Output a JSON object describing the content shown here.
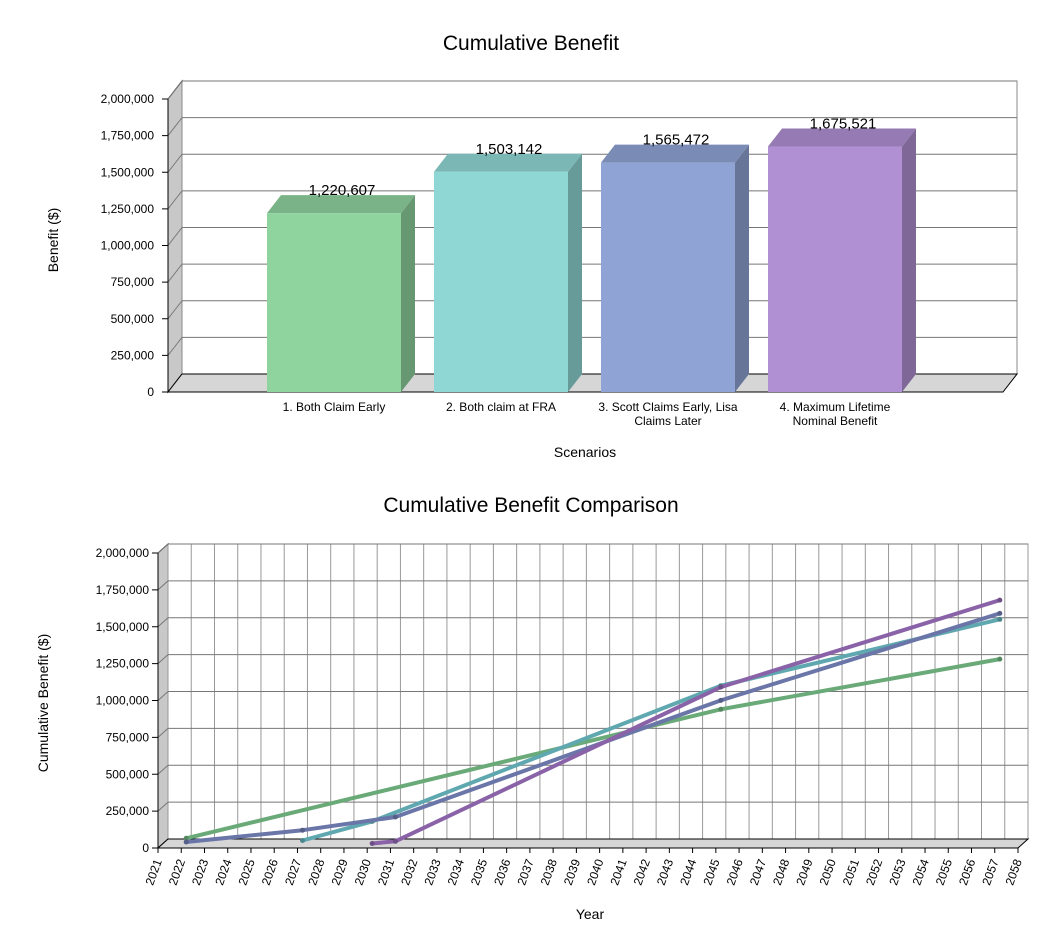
{
  "chart_data": [
    {
      "type": "bar",
      "title": "Cumulative Benefit",
      "xlabel": "Scenarios",
      "ylabel": "Benefit ($)",
      "ylim": [
        0,
        2000000
      ],
      "yticks": [
        "0",
        "250,000",
        "500,000",
        "750,000",
        "1,000,000",
        "1,250,000",
        "1,500,000",
        "1,750,000",
        "2,000,000"
      ],
      "categories": [
        [
          "1.  Both Claim Early"
        ],
        [
          "2.  Both claim at FRA"
        ],
        [
          "3.  Scott Claims Early, Lisa",
          "Claims Later"
        ],
        [
          "4.  Maximum Lifetime",
          "Nominal Benefit"
        ]
      ],
      "values": [
        1220607,
        1503142,
        1565472,
        1675521
      ],
      "value_labels": [
        "1,220,607",
        "1,503,142",
        "1,565,472",
        "1,675,521"
      ],
      "colors": [
        "#8fd39f",
        "#8fd7d5",
        "#8fa3d5",
        "#b08fd3"
      ],
      "grid": true
    },
    {
      "type": "line",
      "title": "Cumulative Benefit Comparison",
      "xlabel": "Year",
      "ylabel": "Cumulative Benefit ($)",
      "ylim": [
        0,
        2000000
      ],
      "xlim": [
        2021,
        2058
      ],
      "yticks": [
        "0",
        "250,000",
        "500,000",
        "750,000",
        "1,000,000",
        "1,250,000",
        "1,500,000",
        "1,750,000",
        "2,000,000"
      ],
      "xticks": [
        "2021",
        "2022",
        "2023",
        "2024",
        "2025",
        "2026",
        "2027",
        "2028",
        "2029",
        "2030",
        "2031",
        "2032",
        "2033",
        "2034",
        "2035",
        "2036",
        "2037",
        "2038",
        "2039",
        "2040",
        "2041",
        "2042",
        "2043",
        "2044",
        "2045",
        "2046",
        "2047",
        "2048",
        "2049",
        "2050",
        "2051",
        "2052",
        "2053",
        "2054",
        "2055",
        "2056",
        "2057",
        "2058"
      ],
      "grid": true,
      "series": [
        {
          "color": "#6aaa78",
          "x": [
            2022,
            2045,
            2057
          ],
          "y": [
            35000,
            910000,
            1250000
          ]
        },
        {
          "color": "#5fa8b0",
          "x": [
            2027,
            2030,
            2045,
            2057
          ],
          "y": [
            20000,
            150000,
            1070000,
            1520000
          ]
        },
        {
          "color": "#6a75a8",
          "x": [
            2022,
            2027,
            2031,
            2045,
            2057
          ],
          "y": [
            10000,
            90000,
            180000,
            970000,
            1560000
          ]
        },
        {
          "color": "#8a62a8",
          "x": [
            2030,
            2031,
            2045,
            2057
          ],
          "y": [
            0,
            15000,
            1060000,
            1650000
          ]
        }
      ]
    }
  ]
}
